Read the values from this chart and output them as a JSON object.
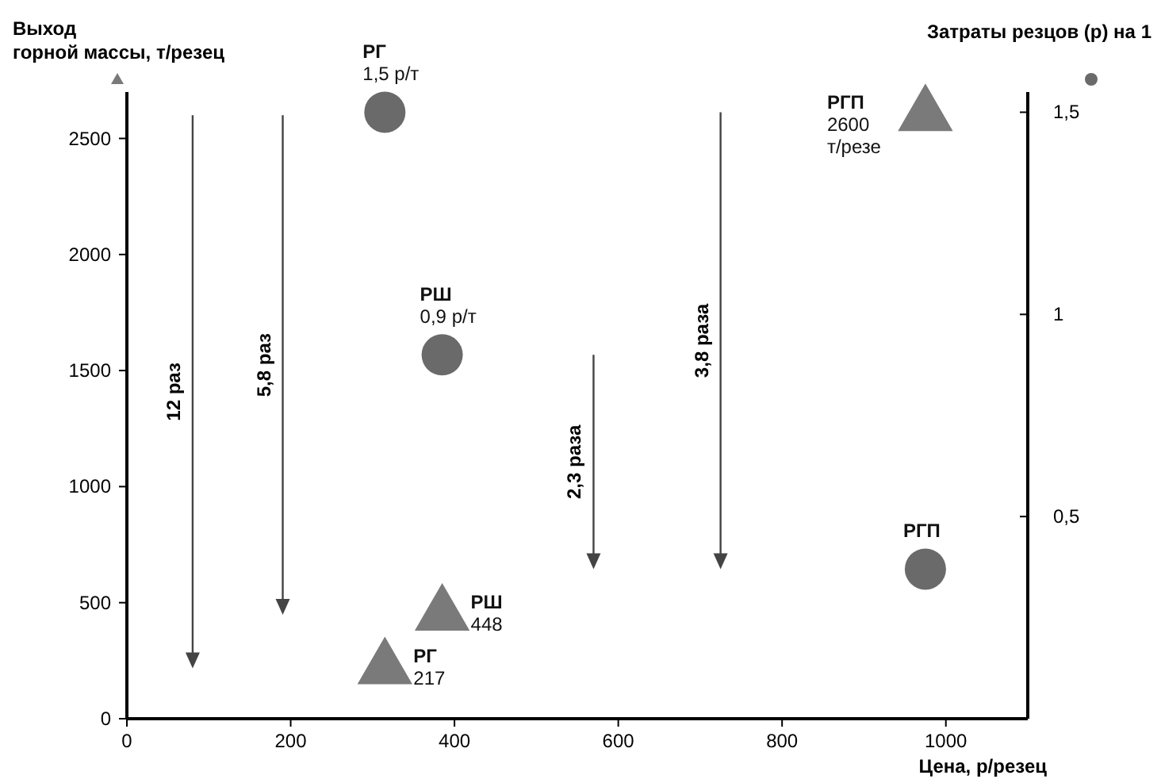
{
  "chart_data": {
    "type": "scatter",
    "xlabel": "Цена, р/резец",
    "ylabel": "Выход горной массы, т/резец",
    "y2label": "Затраты резцов (р) на 1",
    "xlim": [
      0,
      1100
    ],
    "xticks": [
      0,
      200,
      400,
      600,
      800,
      1000
    ],
    "ylim": [
      0,
      2700
    ],
    "yticks": [
      0,
      500,
      1000,
      1500,
      2000,
      2500
    ],
    "y2lim": [
      0,
      1.55
    ],
    "y2ticks": [
      {
        "value": 0.5,
        "label": "0,5"
      },
      {
        "value": 1,
        "label": "1"
      },
      {
        "value": 1.5,
        "label": "1,5"
      }
    ],
    "grid": false,
    "series": [
      {
        "marker": "triangle",
        "color": "#7a7a7a",
        "x": [
          315,
          385,
          975
        ],
        "values": [
          217,
          448,
          2600
        ],
        "value_labels": [
          "РГ\n217",
          "РШ\n448",
          "РГП\n2600\nт/резе"
        ]
      },
      {
        "marker": "circle",
        "color": "#6a6a6a",
        "axis": "y2",
        "x": [
          315,
          385,
          975
        ],
        "values": [
          1.5,
          0.9,
          0.37
        ],
        "value_labels": [
          "РГ\n1,5 р/т",
          "РШ\n0,9 р/т",
          "РГП"
        ]
      }
    ],
    "annotations": [
      "12 раз",
      "5,8 раз",
      "2,3 раза",
      "3,8 раза"
    ]
  }
}
